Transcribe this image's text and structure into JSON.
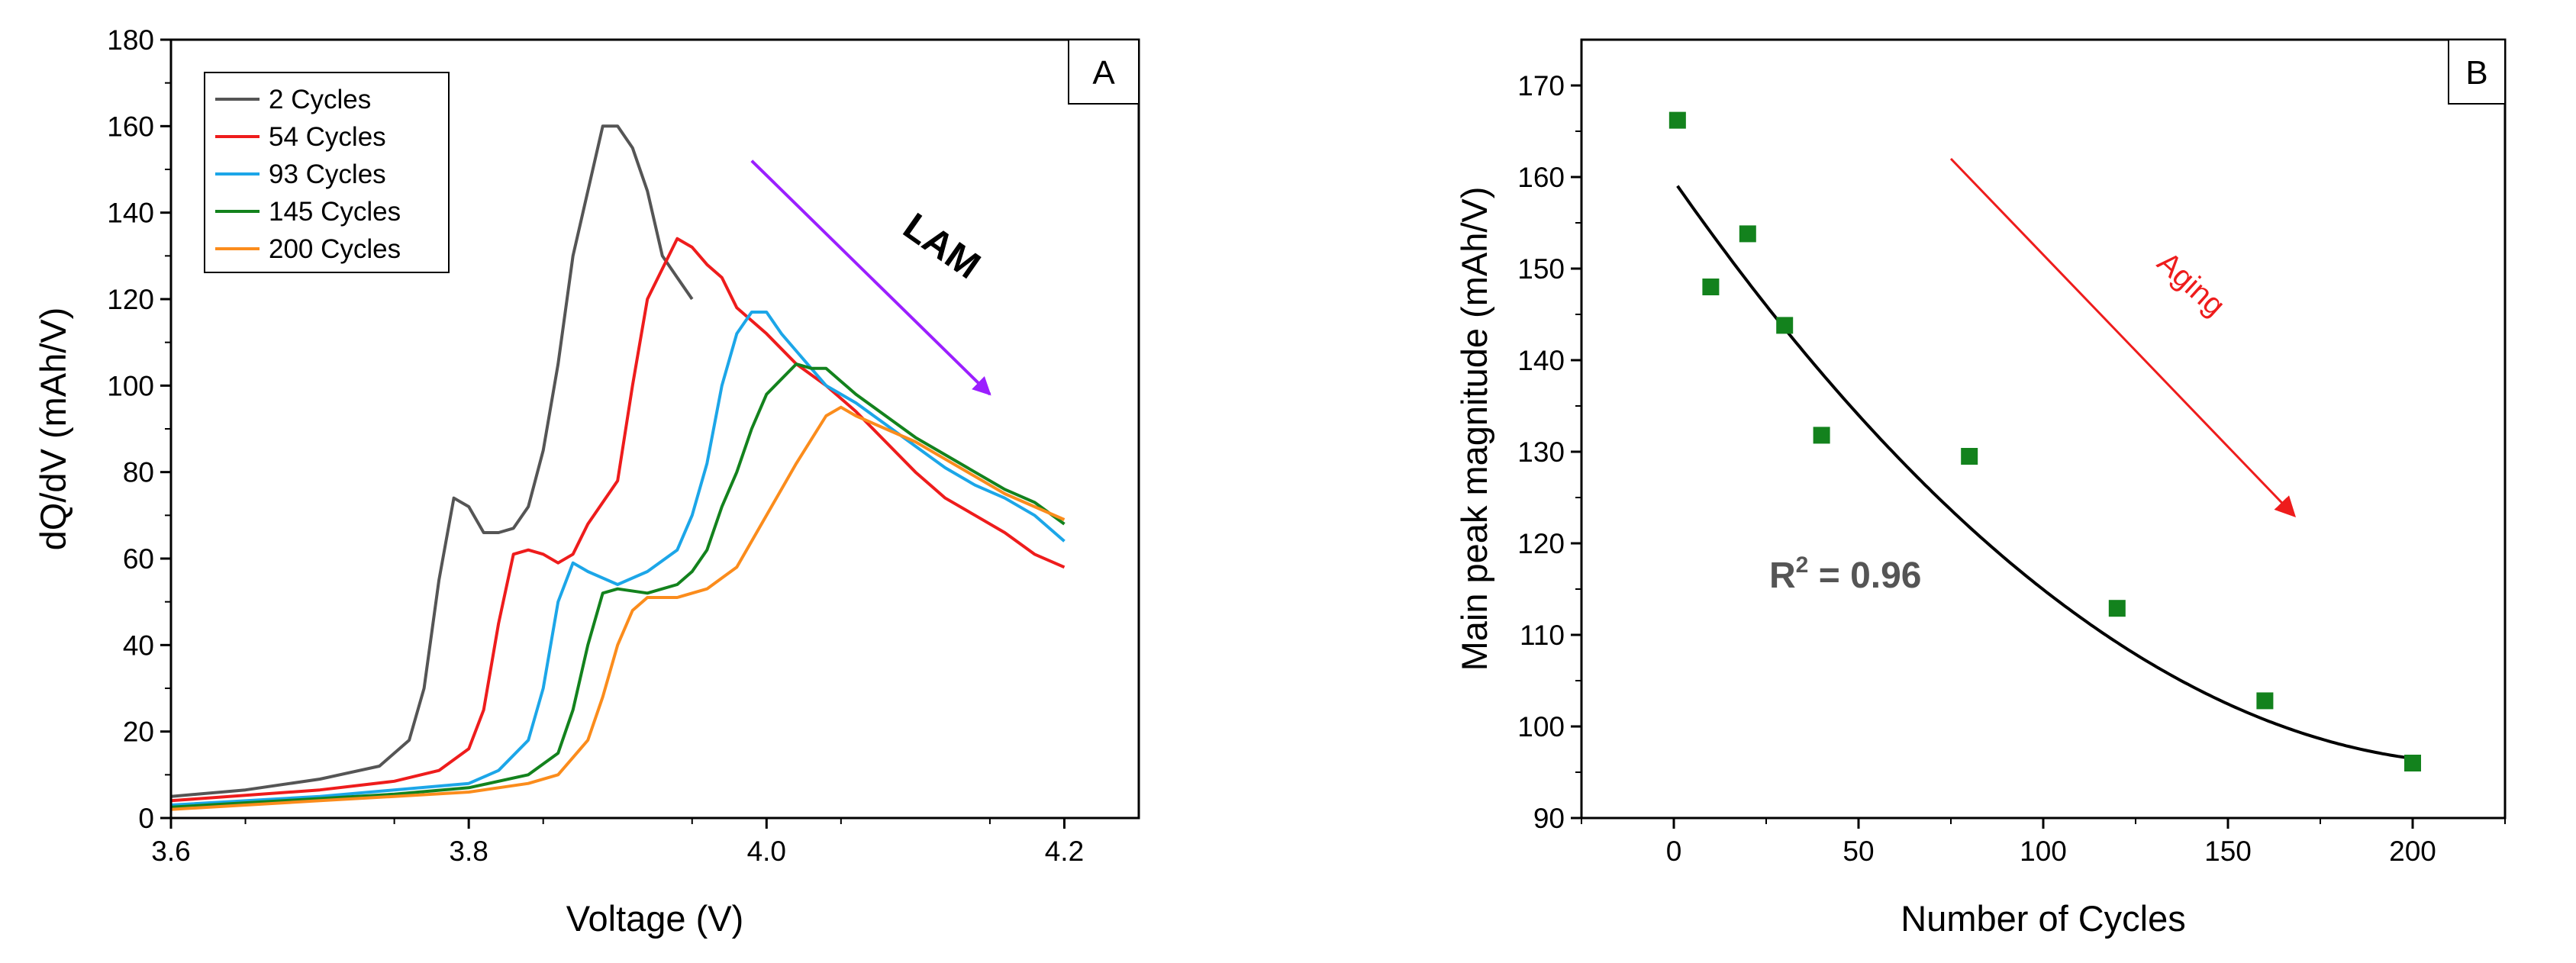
{
  "chart_data": [
    {
      "panel": "A",
      "type": "line",
      "title": "",
      "xlabel": "Voltage (V)",
      "ylabel": "dQ/dV (mAh/V)",
      "xlim": [
        3.6,
        4.25
      ],
      "ylim": [
        0,
        180
      ],
      "xticks": [
        3.6,
        3.8,
        4.0,
        4.2
      ],
      "xtick_labels": [
        "3.6",
        "3.8",
        "4.0",
        "4.2"
      ],
      "yticks": [
        0,
        20,
        40,
        60,
        80,
        100,
        120,
        140,
        160,
        180
      ],
      "ytick_labels": [
        "0",
        "20",
        "40",
        "60",
        "80",
        "100",
        "120",
        "140",
        "160",
        "180"
      ],
      "legend_position": "top-left",
      "series": [
        {
          "name": "2 Cycles",
          "color": "#555555",
          "points": [
            [
              3.6,
              5
            ],
            [
              3.65,
              6.5
            ],
            [
              3.7,
              9
            ],
            [
              3.74,
              12
            ],
            [
              3.76,
              18
            ],
            [
              3.77,
              30
            ],
            [
              3.78,
              55
            ],
            [
              3.79,
              74
            ],
            [
              3.8,
              72
            ],
            [
              3.81,
              66
            ],
            [
              3.82,
              66
            ],
            [
              3.83,
              67
            ],
            [
              3.84,
              72
            ],
            [
              3.85,
              85
            ],
            [
              3.86,
              105
            ],
            [
              3.87,
              130
            ],
            [
              3.88,
              145
            ],
            [
              3.89,
              160
            ],
            [
              3.9,
              160
            ],
            [
              3.91,
              155
            ],
            [
              3.92,
              145
            ],
            [
              3.93,
              130
            ],
            [
              3.94,
              125
            ],
            [
              3.95,
              120
            ]
          ]
        },
        {
          "name": "54 Cycles",
          "color": "#ee1c1c",
          "points": [
            [
              3.6,
              4
            ],
            [
              3.7,
              6.5
            ],
            [
              3.75,
              8.5
            ],
            [
              3.78,
              11
            ],
            [
              3.8,
              16
            ],
            [
              3.81,
              25
            ],
            [
              3.82,
              45
            ],
            [
              3.83,
              61
            ],
            [
              3.84,
              62
            ],
            [
              3.85,
              61
            ],
            [
              3.86,
              59
            ],
            [
              3.87,
              61
            ],
            [
              3.88,
              68
            ],
            [
              3.9,
              78
            ],
            [
              3.91,
              100
            ],
            [
              3.92,
              120
            ],
            [
              3.94,
              134
            ],
            [
              3.95,
              132
            ],
            [
              3.96,
              128
            ],
            [
              3.97,
              125
            ],
            [
              3.98,
              118
            ],
            [
              4.0,
              112
            ],
            [
              4.02,
              105
            ],
            [
              4.04,
              100
            ],
            [
              4.06,
              94
            ],
            [
              4.08,
              87
            ],
            [
              4.1,
              80
            ],
            [
              4.12,
              74
            ],
            [
              4.14,
              70
            ],
            [
              4.16,
              66
            ],
            [
              4.18,
              61
            ],
            [
              4.2,
              58
            ]
          ]
        },
        {
          "name": "93 Cycles",
          "color": "#1ca6e8",
          "points": [
            [
              3.6,
              3
            ],
            [
              3.7,
              5
            ],
            [
              3.75,
              6.5
            ],
            [
              3.8,
              8
            ],
            [
              3.82,
              11
            ],
            [
              3.84,
              18
            ],
            [
              3.85,
              30
            ],
            [
              3.86,
              50
            ],
            [
              3.87,
              59
            ],
            [
              3.88,
              57
            ],
            [
              3.9,
              54
            ],
            [
              3.92,
              57
            ],
            [
              3.94,
              62
            ],
            [
              3.95,
              70
            ],
            [
              3.96,
              82
            ],
            [
              3.97,
              100
            ],
            [
              3.98,
              112
            ],
            [
              3.99,
              117
            ],
            [
              4.0,
              117
            ],
            [
              4.01,
              112
            ],
            [
              4.02,
              108
            ],
            [
              4.03,
              104
            ],
            [
              4.04,
              100
            ],
            [
              4.06,
              96
            ],
            [
              4.08,
              91
            ],
            [
              4.1,
              86
            ],
            [
              4.12,
              81
            ],
            [
              4.14,
              77
            ],
            [
              4.16,
              74
            ],
            [
              4.18,
              70
            ],
            [
              4.2,
              64
            ]
          ]
        },
        {
          "name": "145 Cycles",
          "color": "#13821d",
          "points": [
            [
              3.6,
              2.5
            ],
            [
              3.7,
              4.5
            ],
            [
              3.75,
              5.5
            ],
            [
              3.8,
              7
            ],
            [
              3.84,
              10
            ],
            [
              3.86,
              15
            ],
            [
              3.87,
              25
            ],
            [
              3.88,
              40
            ],
            [
              3.89,
              52
            ],
            [
              3.9,
              53
            ],
            [
              3.92,
              52
            ],
            [
              3.94,
              54
            ],
            [
              3.95,
              57
            ],
            [
              3.96,
              62
            ],
            [
              3.97,
              72
            ],
            [
              3.98,
              80
            ],
            [
              3.99,
              90
            ],
            [
              4.0,
              98
            ],
            [
              4.02,
              105
            ],
            [
              4.03,
              104
            ],
            [
              4.04,
              104
            ],
            [
              4.05,
              101
            ],
            [
              4.06,
              98
            ],
            [
              4.08,
              93
            ],
            [
              4.1,
              88
            ],
            [
              4.12,
              84
            ],
            [
              4.14,
              80
            ],
            [
              4.16,
              76
            ],
            [
              4.18,
              73
            ],
            [
              4.2,
              68
            ]
          ]
        },
        {
          "name": "200 Cycles",
          "color": "#fb8c1c",
          "points": [
            [
              3.6,
              2
            ],
            [
              3.7,
              4
            ],
            [
              3.75,
              5
            ],
            [
              3.8,
              6
            ],
            [
              3.84,
              8
            ],
            [
              3.86,
              10
            ],
            [
              3.87,
              14
            ],
            [
              3.88,
              18
            ],
            [
              3.89,
              28
            ],
            [
              3.9,
              40
            ],
            [
              3.91,
              48
            ],
            [
              3.92,
              51
            ],
            [
              3.94,
              51
            ],
            [
              3.96,
              53
            ],
            [
              3.98,
              58
            ],
            [
              4.0,
              70
            ],
            [
              4.02,
              82
            ],
            [
              4.04,
              93
            ],
            [
              4.05,
              95
            ],
            [
              4.06,
              93
            ],
            [
              4.08,
              90
            ],
            [
              4.1,
              87
            ],
            [
              4.12,
              83
            ],
            [
              4.14,
              79
            ],
            [
              4.16,
              75
            ],
            [
              4.18,
              72
            ],
            [
              4.2,
              69
            ]
          ]
        }
      ],
      "annotations": [
        {
          "text": "LAM",
          "color": "#9b1fff",
          "arrow_from": [
            3.99,
            152
          ],
          "arrow_to": [
            4.15,
            98
          ]
        },
        {
          "text": "A"
        }
      ]
    },
    {
      "panel": "B",
      "type": "scatter",
      "title": "",
      "xlabel": "Number of Cycles",
      "ylabel": "Main peak magnitude (mAh/V)",
      "xlim": [
        -25,
        225
      ],
      "ylim": [
        90,
        175
      ],
      "xticks": [
        0,
        50,
        100,
        150,
        200
      ],
      "xtick_labels": [
        "0",
        "50",
        "100",
        "150",
        "200"
      ],
      "yticks": [
        90,
        100,
        110,
        120,
        130,
        140,
        150,
        160,
        170
      ],
      "ytick_labels": [
        "90",
        "100",
        "110",
        "120",
        "130",
        "140",
        "150",
        "160",
        "170"
      ],
      "series": [
        {
          "name": "Main peak",
          "color": "#13821d",
          "points": [
            [
              1,
              166.2
            ],
            [
              10,
              148
            ],
            [
              20,
              153.8
            ],
            [
              30,
              143.8
            ],
            [
              40,
              131.8
            ],
            [
              80,
              129.5
            ],
            [
              120,
              112.9
            ],
            [
              160,
              102.8
            ],
            [
              200,
              96
            ]
          ]
        }
      ],
      "fit": {
        "type": "quadratic",
        "color": "#000000",
        "coefficients": [
          159.6,
          -0.5775,
          0.00131
        ],
        "x_range": [
          1,
          200
        ]
      },
      "annotations": [
        {
          "text": "R",
          "sup": "2",
          "rest": " = 0.96",
          "color": "#555555"
        },
        {
          "text": "Aging",
          "color": "#ee1c1c",
          "arrow_from": [
            75,
            162
          ],
          "arrow_to": [
            168,
            123
          ]
        },
        {
          "text": "B"
        }
      ]
    }
  ]
}
